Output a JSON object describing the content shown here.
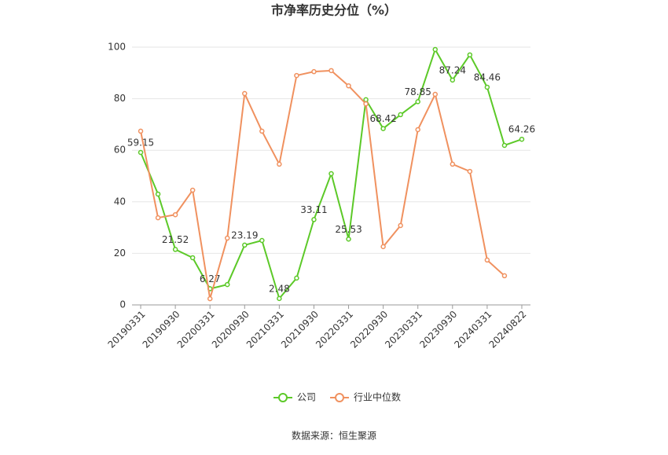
{
  "chart_data": {
    "type": "line",
    "title": "市净率历史分位（%）",
    "categories": [
      "20190331",
      null,
      "20190930",
      null,
      "20200331",
      null,
      "20200930",
      null,
      "20210331",
      null,
      "20210930",
      null,
      "20220331",
      null,
      "20220930",
      null,
      "20230331",
      null,
      "20230930",
      null,
      "20240331",
      null,
      "20240822"
    ],
    "series": [
      {
        "name": "公司",
        "color": "#5cc928",
        "values": [
          59.15,
          43,
          21.52,
          18.3,
          6.27,
          7.9,
          23.19,
          25,
          2.48,
          10.4,
          33.11,
          50.9,
          25.53,
          79.6,
          68.42,
          73.8,
          78.85,
          99.1,
          87.24,
          97,
          84.46,
          61.9,
          64.26
        ],
        "value_labels": [
          "59.15",
          null,
          "21.52",
          null,
          "6.27",
          null,
          "23.19",
          null,
          "2.48",
          null,
          "33.11",
          null,
          "25.53",
          null,
          "68.42",
          null,
          "78.85",
          null,
          "87.24",
          null,
          "84.46",
          null,
          "64.26"
        ]
      },
      {
        "name": "行业中位数",
        "color": "#f0915f",
        "values": [
          67.4,
          33.8,
          35,
          44.5,
          2.4,
          25.9,
          82,
          67.4,
          54.6,
          89,
          90.5,
          90.9,
          85,
          78,
          22.6,
          30.8,
          68,
          81.7,
          54.6,
          51.8,
          17.4,
          11.3,
          null
        ]
      }
    ],
    "ylim": [
      0,
      100
    ],
    "yticks": [
      0,
      20,
      40,
      60,
      80,
      100
    ],
    "grid": true,
    "source": "数据来源：恒生聚源"
  }
}
